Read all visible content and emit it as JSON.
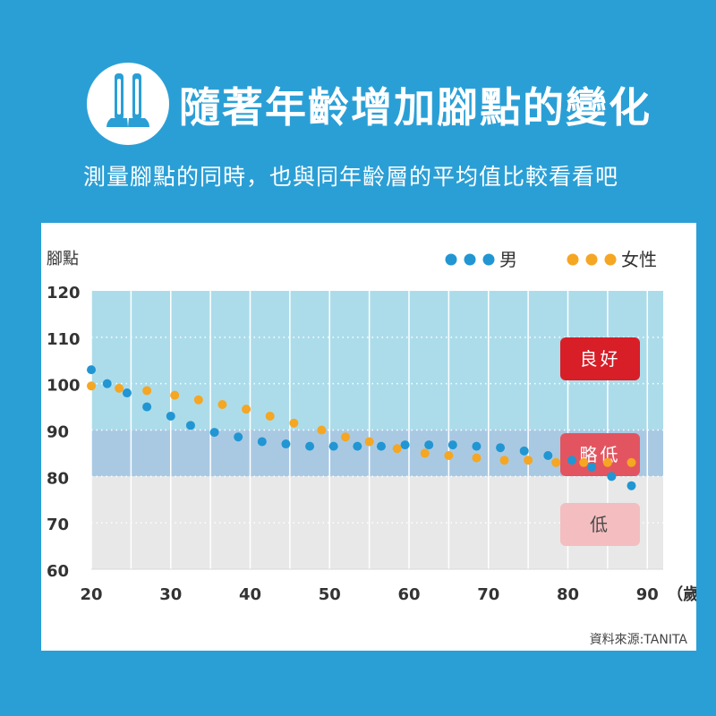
{
  "header": {
    "title": "隨著年齡增加腳點的變化",
    "subtitle": "測量腳點的同時，也與同年齡層的平均值比較看看吧",
    "logo_icon": "feet-icon"
  },
  "chart_data": {
    "type": "scatter",
    "ylabel": "腳點",
    "xlabel": "（歲）",
    "xlim": [
      20,
      92
    ],
    "ylim": [
      60,
      120
    ],
    "x_ticks": [
      20,
      30,
      40,
      50,
      60,
      70,
      80,
      90
    ],
    "y_ticks": [
      60,
      70,
      80,
      90,
      100,
      110,
      120
    ],
    "legend_position": "top-right",
    "series": [
      {
        "name": "男",
        "color": "#2196d3",
        "points": [
          [
            20,
            103
          ],
          [
            22,
            100
          ],
          [
            24.5,
            98
          ],
          [
            27,
            95
          ],
          [
            30,
            93
          ],
          [
            32.5,
            91
          ],
          [
            35.5,
            89.5
          ],
          [
            38.5,
            88.5
          ],
          [
            41.5,
            87.5
          ],
          [
            44.5,
            87
          ],
          [
            47.5,
            86.5
          ],
          [
            50.5,
            86.5
          ],
          [
            53.5,
            86.5
          ],
          [
            56.5,
            86.5
          ],
          [
            59.5,
            86.8
          ],
          [
            62.5,
            86.8
          ],
          [
            65.5,
            86.8
          ],
          [
            68.5,
            86.5
          ],
          [
            71.5,
            86.2
          ],
          [
            74.5,
            85.5
          ],
          [
            77.5,
            84.5
          ],
          [
            80.5,
            83.5
          ],
          [
            83,
            82
          ],
          [
            85.5,
            80
          ],
          [
            88,
            78
          ]
        ]
      },
      {
        "name": "女性",
        "color": "#f5a623",
        "points": [
          [
            20,
            99.5
          ],
          [
            23.5,
            99
          ],
          [
            27,
            98.5
          ],
          [
            30.5,
            97.5
          ],
          [
            33.5,
            96.5
          ],
          [
            36.5,
            95.5
          ],
          [
            39.5,
            94.5
          ],
          [
            42.5,
            93
          ],
          [
            45.5,
            91.5
          ],
          [
            49,
            90
          ],
          [
            52,
            88.5
          ],
          [
            55,
            87.5
          ],
          [
            58.5,
            86
          ],
          [
            62,
            85
          ],
          [
            65,
            84.5
          ],
          [
            68.5,
            84
          ],
          [
            72,
            83.5
          ],
          [
            75,
            83.5
          ],
          [
            78.5,
            83
          ],
          [
            82,
            83
          ],
          [
            85,
            83
          ],
          [
            88,
            83
          ]
        ]
      }
    ],
    "zones": [
      {
        "label": "良好",
        "from": 90,
        "to": 120,
        "color": "#acdcea",
        "badge_color": "#d81e27",
        "text_color": "#ffffff"
      },
      {
        "label": "略低",
        "from": 80,
        "to": 90,
        "color": "#a9c9e3",
        "badge_color": "#e25560",
        "text_color": "#ffffff"
      },
      {
        "label": "低",
        "from": 60,
        "to": 80,
        "color": "#e8e8e8",
        "badge_color": "#f4bdc0",
        "text_color": "#4a4a4a"
      }
    ],
    "source": "資料來源:TANITA"
  }
}
